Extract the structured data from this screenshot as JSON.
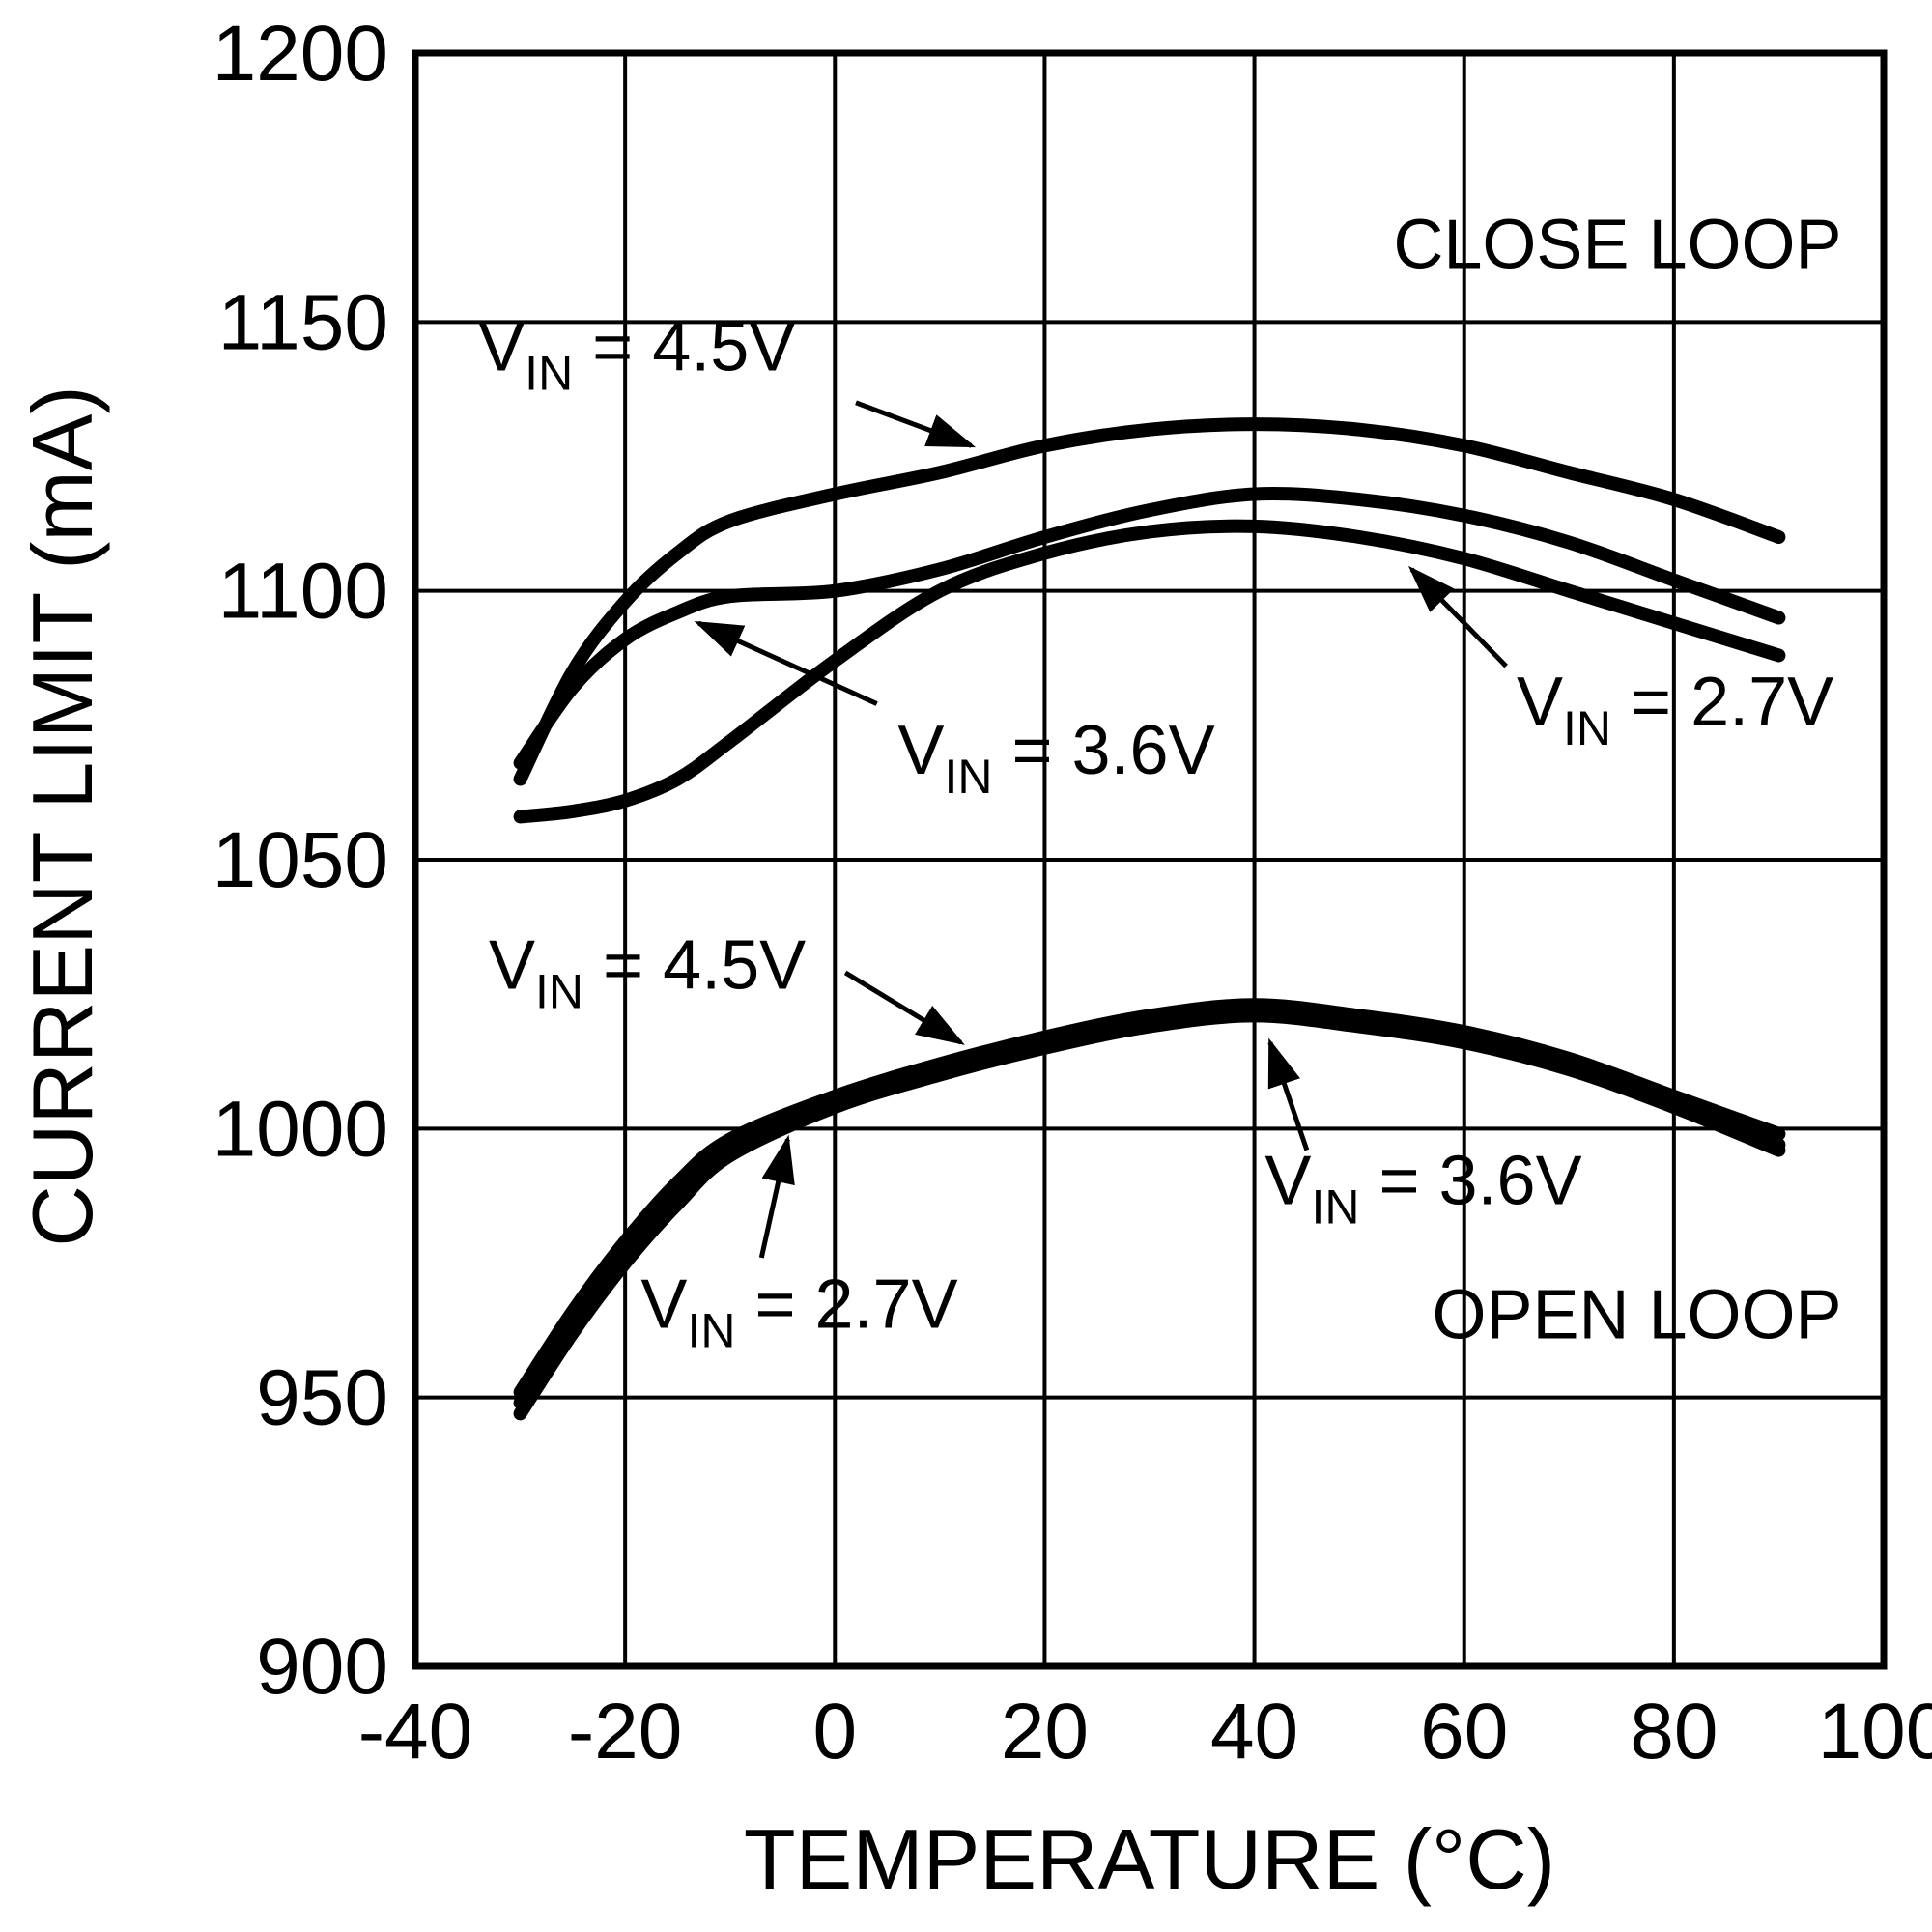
{
  "chart_data": {
    "type": "line",
    "title": "",
    "xlabel": "TEMPERATURE (°C)",
    "ylabel": "CURRENT LIMIT (mA)",
    "xlim": [
      -40,
      100
    ],
    "ylim": [
      900,
      1200
    ],
    "xticks": [
      -40,
      -20,
      0,
      20,
      40,
      60,
      80,
      100
    ],
    "yticks": [
      900,
      950,
      1000,
      1050,
      1100,
      1150,
      1200
    ],
    "grid": true,
    "line_color": "#000000",
    "x": [
      -30,
      -25,
      -20,
      -15,
      -10,
      0,
      10,
      20,
      30,
      40,
      50,
      60,
      70,
      80,
      90
    ],
    "series": [
      {
        "name": "close-loop-vin-4-5v",
        "group": "CLOSE LOOP",
        "vin": "4.5V",
        "values": [
          1065,
          1085,
          1098,
          1107,
          1113,
          1118,
          1122,
          1127,
          1130,
          1131,
          1130,
          1127,
          1122,
          1117,
          1110
        ]
      },
      {
        "name": "close-loop-vin-3-6v",
        "group": "CLOSE LOOP",
        "vin": "3.6V",
        "values": [
          1068,
          1082,
          1091,
          1096,
          1099,
          1100,
          1104,
          1110,
          1115,
          1118,
          1117,
          1114,
          1109,
          1102,
          1095
        ]
      },
      {
        "name": "close-loop-vin-2-7v",
        "group": "CLOSE LOOP",
        "vin": "2.7V",
        "values": [
          1058,
          1059,
          1061,
          1065,
          1072,
          1087,
          1100,
          1107,
          1111,
          1112,
          1110,
          1106,
          1100,
          1094,
          1088
        ]
      },
      {
        "name": "open-loop-vin-4-5v",
        "group": "OPEN LOOP",
        "vin": "4.5V",
        "values": [
          951,
          966,
          979,
          990,
          998,
          1006,
          1012,
          1017,
          1021,
          1023,
          1021,
          1018,
          1013,
          1006,
          999
        ]
      },
      {
        "name": "open-loop-vin-3-6v",
        "group": "OPEN LOOP",
        "vin": "3.6V",
        "values": [
          949,
          964,
          977,
          988,
          996,
          1005,
          1011,
          1016,
          1020,
          1022,
          1020,
          1017,
          1012,
          1005,
          997
        ]
      },
      {
        "name": "open-loop-vin-2-7v",
        "group": "OPEN LOOP",
        "vin": "2.7V",
        "values": [
          947,
          962,
          975,
          986,
          995,
          1004,
          1010,
          1015,
          1019,
          1021,
          1019,
          1016,
          1011,
          1004,
          996
        ]
      }
    ],
    "annotations": [
      {
        "id": "close-loop-label",
        "parts": [
          {
            "t": "CLOSE LOOP"
          }
        ],
        "x": 96,
        "y": 1160,
        "anchor": "end"
      },
      {
        "id": "open-loop-label",
        "parts": [
          {
            "t": "OPEN LOOP"
          }
        ],
        "x": 96,
        "y": 961,
        "anchor": "end"
      },
      {
        "id": "close-loop-vin-4-5v-callout",
        "parts": [
          {
            "t": "V"
          },
          {
            "t": "IN",
            "sub": true
          },
          {
            "t": " = 4.5V"
          }
        ],
        "x": -34,
        "y": 1141,
        "anchor": "start",
        "arrow": {
          "from": [
            2,
            1135
          ],
          "to": [
            13,
            1127
          ]
        }
      },
      {
        "id": "close-loop-vin-3-6v-callout",
        "parts": [
          {
            "t": "V"
          },
          {
            "t": "IN",
            "sub": true
          },
          {
            "t": " = 3.6V"
          }
        ],
        "x": 6,
        "y": 1066,
        "anchor": "start",
        "arrow": {
          "from": [
            4,
            1079
          ],
          "to": [
            -13,
            1094
          ]
        }
      },
      {
        "id": "close-loop-vin-2-7v-callout",
        "parts": [
          {
            "t": "V"
          },
          {
            "t": "IN",
            "sub": true
          },
          {
            "t": " = 2.7V"
          }
        ],
        "x": 65,
        "y": 1075,
        "anchor": "start",
        "arrow": {
          "from": [
            64,
            1086
          ],
          "to": [
            55,
            1104
          ]
        }
      },
      {
        "id": "open-loop-vin-4-5v-callout",
        "parts": [
          {
            "t": "V"
          },
          {
            "t": "IN",
            "sub": true
          },
          {
            "t": " = 4.5V"
          }
        ],
        "x": -33,
        "y": 1026,
        "anchor": "start",
        "arrow": {
          "from": [
            1,
            1029
          ],
          "to": [
            12,
            1016
          ]
        }
      },
      {
        "id": "open-loop-vin-2-7v-callout",
        "parts": [
          {
            "t": "V"
          },
          {
            "t": "IN",
            "sub": true
          },
          {
            "t": " = 2.7V"
          }
        ],
        "x": -18.5,
        "y": 963,
        "anchor": "start",
        "arrow": {
          "from": [
            -7,
            976
          ],
          "to": [
            -4.5,
            998
          ]
        }
      },
      {
        "id": "open-loop-vin-3-6v-callout",
        "parts": [
          {
            "t": "V"
          },
          {
            "t": "IN",
            "sub": true
          },
          {
            "t": " = 3.6V"
          }
        ],
        "x": 41,
        "y": 986,
        "anchor": "start",
        "arrow": {
          "from": [
            45,
            996
          ],
          "to": [
            41.5,
            1016
          ]
        }
      }
    ]
  }
}
